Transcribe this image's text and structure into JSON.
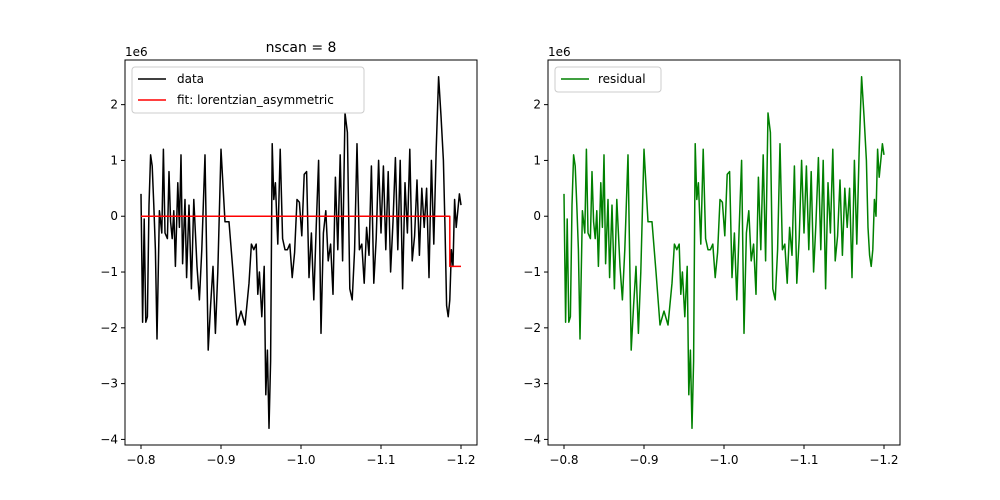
{
  "chart_data": [
    {
      "type": "line",
      "title": "nscan = 8",
      "offset_text": "1e6",
      "xlim": [
        -0.8,
        -1.2
      ],
      "ylim": [
        -4.1,
        2.8
      ],
      "xticks": [
        -0.8,
        -0.9,
        -1.0,
        -1.1,
        -1.2
      ],
      "xtick_labels": [
        "−0.8",
        "−0.9",
        "−1.0",
        "−1.1",
        "−1.2"
      ],
      "yticks": [
        -4,
        -3,
        -2,
        -1,
        0,
        1,
        2
      ],
      "ytick_labels": [
        "−4",
        "−3",
        "−2",
        "−1",
        "0",
        "1",
        "2"
      ],
      "legend_position": "top-left",
      "series": [
        {
          "name": "data",
          "color": "#000000",
          "x": [
            -0.8,
            -0.802,
            -0.804,
            -0.806,
            -0.808,
            -0.81,
            -0.812,
            -0.814,
            -0.816,
            -0.818,
            -0.82,
            -0.823,
            -0.826,
            -0.828,
            -0.83,
            -0.833,
            -0.835,
            -0.837,
            -0.839,
            -0.841,
            -0.843,
            -0.846,
            -0.848,
            -0.85,
            -0.852,
            -0.855,
            -0.857,
            -0.86,
            -0.863,
            -0.866,
            -0.87,
            -0.873,
            -0.876,
            -0.88,
            -0.884,
            -0.887,
            -0.89,
            -0.893,
            -0.896,
            -0.9,
            -0.905,
            -0.91,
            -0.915,
            -0.92,
            -0.925,
            -0.93,
            -0.935,
            -0.938,
            -0.941,
            -0.944,
            -0.946,
            -0.948,
            -0.951,
            -0.954,
            -0.956,
            -0.958,
            -0.96,
            -0.962,
            -0.964,
            -0.966,
            -0.968,
            -0.971,
            -0.974,
            -0.977,
            -0.98,
            -0.983,
            -0.986,
            -0.989,
            -0.992,
            -0.995,
            -0.998,
            -1.001,
            -1.004,
            -1.007,
            -1.01,
            -1.013,
            -1.016,
            -1.019,
            -1.022,
            -1.025,
            -1.028,
            -1.031,
            -1.034,
            -1.037,
            -1.04,
            -1.043,
            -1.046,
            -1.049,
            -1.052,
            -1.055,
            -1.058,
            -1.061,
            -1.064,
            -1.067,
            -1.07,
            -1.073,
            -1.076,
            -1.079,
            -1.082,
            -1.085,
            -1.088,
            -1.091,
            -1.094,
            -1.097,
            -1.1,
            -1.103,
            -1.106,
            -1.109,
            -1.112,
            -1.115,
            -1.118,
            -1.121,
            -1.124,
            -1.127,
            -1.13,
            -1.133,
            -1.136,
            -1.139,
            -1.142,
            -1.145,
            -1.148,
            -1.151,
            -1.154,
            -1.157,
            -1.16,
            -1.163,
            -1.166,
            -1.169,
            -1.172,
            -1.175,
            -1.178,
            -1.18,
            -1.182,
            -1.184,
            -1.186,
            -1.188,
            -1.19,
            -1.192,
            -1.194,
            -1.196,
            -1.198,
            -1.2
          ],
          "y": [
            0.4,
            -1.9,
            -0.05,
            -1.9,
            -1.8,
            0.2,
            1.1,
            0.9,
            0.2,
            -0.6,
            -2.2,
            0.1,
            -0.3,
            1.2,
            -0.3,
            -0.4,
            0.8,
            -0.1,
            -0.4,
            0.1,
            -0.9,
            0.6,
            -0.2,
            1.1,
            -0.85,
            0.3,
            -1.1,
            0.2,
            -1.3,
            0.3,
            -0.9,
            -1.5,
            -0.6,
            1.1,
            -2.4,
            -1.6,
            -0.9,
            -2.1,
            -1.0,
            1.2,
            -0.1,
            -0.1,
            -1.0,
            -1.95,
            -1.7,
            -1.95,
            -1.2,
            -0.5,
            -0.6,
            -0.5,
            -1.4,
            -1.0,
            -1.8,
            -0.9,
            -3.2,
            -2.4,
            -3.8,
            -2.6,
            1.3,
            0.3,
            0.6,
            -0.5,
            1.2,
            -0.4,
            -0.6,
            -0.6,
            -0.5,
            -1.1,
            -0.65,
            0.3,
            0.25,
            -0.35,
            0.75,
            0.8,
            -1.1,
            -0.3,
            -1.5,
            -0.2,
            1.0,
            -2.1,
            -0.3,
            0.1,
            -0.8,
            -0.5,
            -1.4,
            0.7,
            -0.6,
            1.1,
            -0.8,
            1.85,
            1.5,
            -1.3,
            -1.5,
            -0.6,
            1.3,
            -0.6,
            -0.5,
            -1.2,
            -0.2,
            -0.7,
            0.9,
            -1.2,
            -0.4,
            1.0,
            -0.3,
            0.9,
            -0.6,
            0.8,
            -1.0,
            -0.1,
            1.05,
            -0.6,
            1.0,
            -1.3,
            0.6,
            -0.3,
            1.2,
            -0.8,
            -0.35,
            0.65,
            -0.7,
            0.5,
            -0.2,
            0.5,
            -1.1,
            1.0,
            -0.5,
            1.2,
            2.5,
            1.8,
            1.0,
            -0.2,
            -1.6,
            -1.8,
            -1.5,
            -0.6,
            -0.9,
            0.3,
            -0.2,
            0.1,
            0.4,
            0.2
          ]
        },
        {
          "name": "fit: lorentzian_asymmetric",
          "color": "#ff0000",
          "x": [
            -0.8,
            -1.186,
            -1.186,
            -1.2
          ],
          "y": [
            0.0,
            0.0,
            -0.9,
            -0.9
          ]
        }
      ]
    },
    {
      "type": "line",
      "title": "",
      "offset_text": "1e6",
      "xlim": [
        -0.8,
        -1.2
      ],
      "ylim": [
        -4.1,
        2.8
      ],
      "xticks": [
        -0.8,
        -0.9,
        -1.0,
        -1.1,
        -1.2
      ],
      "xtick_labels": [
        "−0.8",
        "−0.9",
        "−1.0",
        "−1.1",
        "−1.2"
      ],
      "yticks": [
        -4,
        -3,
        -2,
        -1,
        0,
        1,
        2
      ],
      "ytick_labels": [
        "−4",
        "−3",
        "−2",
        "−1",
        "0",
        "1",
        "2"
      ],
      "legend_position": "top-left",
      "series": [
        {
          "name": "residual",
          "color": "#008000",
          "x": [
            -0.8,
            -0.802,
            -0.804,
            -0.806,
            -0.808,
            -0.81,
            -0.812,
            -0.814,
            -0.816,
            -0.818,
            -0.82,
            -0.823,
            -0.826,
            -0.828,
            -0.83,
            -0.833,
            -0.835,
            -0.837,
            -0.839,
            -0.841,
            -0.843,
            -0.846,
            -0.848,
            -0.85,
            -0.852,
            -0.855,
            -0.857,
            -0.86,
            -0.863,
            -0.866,
            -0.87,
            -0.873,
            -0.876,
            -0.88,
            -0.884,
            -0.887,
            -0.89,
            -0.893,
            -0.896,
            -0.9,
            -0.905,
            -0.91,
            -0.915,
            -0.92,
            -0.925,
            -0.93,
            -0.935,
            -0.938,
            -0.941,
            -0.944,
            -0.946,
            -0.948,
            -0.951,
            -0.954,
            -0.956,
            -0.958,
            -0.96,
            -0.962,
            -0.964,
            -0.966,
            -0.968,
            -0.971,
            -0.974,
            -0.977,
            -0.98,
            -0.983,
            -0.986,
            -0.989,
            -0.992,
            -0.995,
            -0.998,
            -1.001,
            -1.004,
            -1.007,
            -1.01,
            -1.013,
            -1.016,
            -1.019,
            -1.022,
            -1.025,
            -1.028,
            -1.031,
            -1.034,
            -1.037,
            -1.04,
            -1.043,
            -1.046,
            -1.049,
            -1.052,
            -1.055,
            -1.058,
            -1.061,
            -1.064,
            -1.067,
            -1.07,
            -1.073,
            -1.076,
            -1.079,
            -1.082,
            -1.085,
            -1.088,
            -1.091,
            -1.094,
            -1.097,
            -1.1,
            -1.103,
            -1.106,
            -1.109,
            -1.112,
            -1.115,
            -1.118,
            -1.121,
            -1.124,
            -1.127,
            -1.13,
            -1.133,
            -1.136,
            -1.139,
            -1.142,
            -1.145,
            -1.148,
            -1.151,
            -1.154,
            -1.157,
            -1.16,
            -1.163,
            -1.166,
            -1.169,
            -1.172,
            -1.175,
            -1.178,
            -1.18,
            -1.182,
            -1.184,
            -1.186,
            -1.188,
            -1.19,
            -1.192,
            -1.194,
            -1.196,
            -1.198,
            -1.2
          ],
          "y": [
            0.4,
            -1.9,
            -0.05,
            -1.9,
            -1.8,
            0.2,
            1.1,
            0.9,
            0.2,
            -0.6,
            -2.2,
            0.1,
            -0.3,
            1.2,
            -0.3,
            -0.4,
            0.8,
            -0.1,
            -0.4,
            0.1,
            -0.9,
            0.6,
            -0.2,
            1.1,
            -0.85,
            0.3,
            -1.1,
            0.2,
            -1.3,
            0.3,
            -0.9,
            -1.5,
            -0.6,
            1.1,
            -2.4,
            -1.6,
            -0.9,
            -2.1,
            -1.0,
            1.2,
            -0.1,
            -0.1,
            -1.0,
            -1.95,
            -1.7,
            -1.95,
            -1.2,
            -0.5,
            -0.6,
            -0.5,
            -1.4,
            -1.0,
            -1.8,
            -0.9,
            -3.2,
            -2.4,
            -3.8,
            -2.6,
            1.3,
            0.3,
            0.6,
            -0.5,
            1.2,
            -0.4,
            -0.6,
            -0.6,
            -0.5,
            -1.1,
            -0.65,
            0.3,
            0.25,
            -0.35,
            0.75,
            0.8,
            -1.1,
            -0.3,
            -1.5,
            -0.2,
            1.0,
            -2.1,
            -0.3,
            0.1,
            -0.8,
            -0.5,
            -1.4,
            0.7,
            -0.6,
            1.1,
            -0.8,
            1.85,
            1.5,
            -1.3,
            -1.5,
            -0.6,
            1.3,
            -0.6,
            -0.5,
            -1.2,
            -0.2,
            -0.7,
            0.9,
            -1.2,
            -0.4,
            1.0,
            -0.3,
            0.9,
            -0.6,
            0.8,
            -1.0,
            -0.1,
            1.05,
            -0.6,
            1.0,
            -1.3,
            0.6,
            -0.3,
            1.2,
            -0.8,
            -0.35,
            0.65,
            -0.7,
            0.5,
            -0.2,
            0.5,
            -1.1,
            1.0,
            -0.5,
            1.2,
            2.5,
            1.8,
            1.0,
            -0.2,
            -0.7,
            -0.9,
            -0.6,
            0.3,
            0.0,
            1.2,
            0.7,
            1.0,
            1.3,
            1.1
          ]
        }
      ]
    }
  ]
}
